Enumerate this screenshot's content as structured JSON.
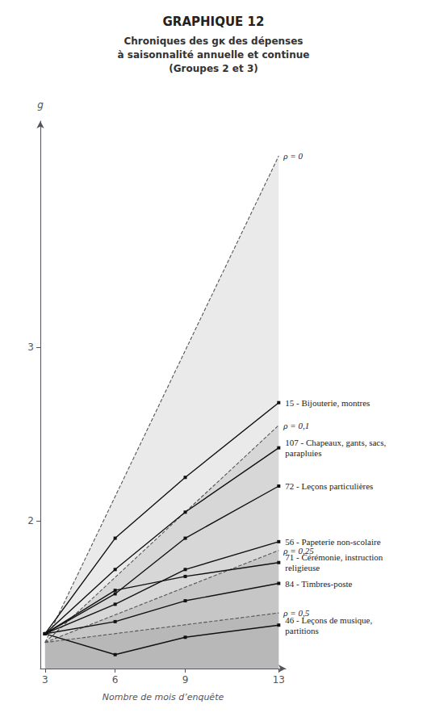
{
  "chart_data": {
    "type": "line",
    "title": "GRAPHIQUE 12",
    "subtitle": [
      "Chroniques des gᴋ des dépenses",
      "à saisonnalité annuelle et continue",
      "(Groupes 2 et 3)"
    ],
    "xlabel": "Nombre de mois d’enquête",
    "ylabel": "g",
    "xlim": [
      2.8,
      13.3
    ],
    "xticks": [
      3,
      6,
      9,
      13
    ],
    "ylim": [
      1.15,
      4.3
    ],
    "yticks": [
      2,
      3
    ],
    "grid": false,
    "series": [
      {
        "name": "ρ = 0",
        "type": "area",
        "x": [
          3,
          13
        ],
        "values": [
          1.3,
          4.1
        ],
        "color": "#555555",
        "line_style": "dashed",
        "marker": "none"
      },
      {
        "name": "ρ = 0,1",
        "type": "area",
        "x": [
          3,
          13
        ],
        "values": [
          1.3,
          2.55
        ],
        "color": "#555555",
        "line_style": "dashed",
        "marker": "none"
      },
      {
        "name": "ρ = 0,25",
        "type": "area",
        "x": [
          3,
          13
        ],
        "values": [
          1.3,
          1.83
        ],
        "color": "#555555",
        "line_style": "dashed",
        "marker": "none"
      },
      {
        "name": "ρ = 0,5",
        "type": "area",
        "x": [
          3,
          13
        ],
        "values": [
          1.3,
          1.47
        ],
        "color": "#555555",
        "line_style": "dashed",
        "marker": "none"
      },
      {
        "name": "15 - Bijouterie, montres",
        "type": "line",
        "x": [
          3,
          6,
          9,
          13
        ],
        "values": [
          1.35,
          1.9,
          2.25,
          2.68
        ],
        "color": "#111111",
        "line_style": "solid",
        "marker": "square"
      },
      {
        "name": "107 - Chapeaux, gants, sacs,\nparapluies",
        "type": "line",
        "x": [
          3,
          6,
          9,
          13
        ],
        "values": [
          1.35,
          1.72,
          2.05,
          2.42
        ],
        "color": "#111111",
        "line_style": "solid",
        "marker": "square"
      },
      {
        "name": "72 - Leçons particulières",
        "type": "line",
        "x": [
          3,
          6,
          9,
          13
        ],
        "values": [
          1.35,
          1.58,
          1.9,
          2.2
        ],
        "color": "#111111",
        "line_style": "solid",
        "marker": "square"
      },
      {
        "name": "56 - Papeterie non-scolaire",
        "type": "line",
        "x": [
          3,
          6,
          9,
          13
        ],
        "values": [
          1.35,
          1.52,
          1.72,
          1.88
        ],
        "color": "#111111",
        "line_style": "solid",
        "marker": "square"
      },
      {
        "name": "71 - Cérémonie, instruction\nreligieuse",
        "type": "line",
        "x": [
          3,
          6,
          9,
          13
        ],
        "values": [
          1.35,
          1.6,
          1.68,
          1.76
        ],
        "color": "#111111",
        "line_style": "solid",
        "marker": "square"
      },
      {
        "name": "84 - Timbres-poste",
        "type": "line",
        "x": [
          3,
          6,
          9,
          13
        ],
        "values": [
          1.35,
          1.42,
          1.54,
          1.64
        ],
        "color": "#111111",
        "line_style": "solid",
        "marker": "square"
      },
      {
        "name": "46 - Leçons de musique,\npartitions",
        "type": "line",
        "x": [
          3,
          6,
          9,
          13
        ],
        "values": [
          1.35,
          1.23,
          1.33,
          1.4
        ],
        "color": "#111111",
        "line_style": "solid",
        "marker": "square"
      }
    ]
  }
}
